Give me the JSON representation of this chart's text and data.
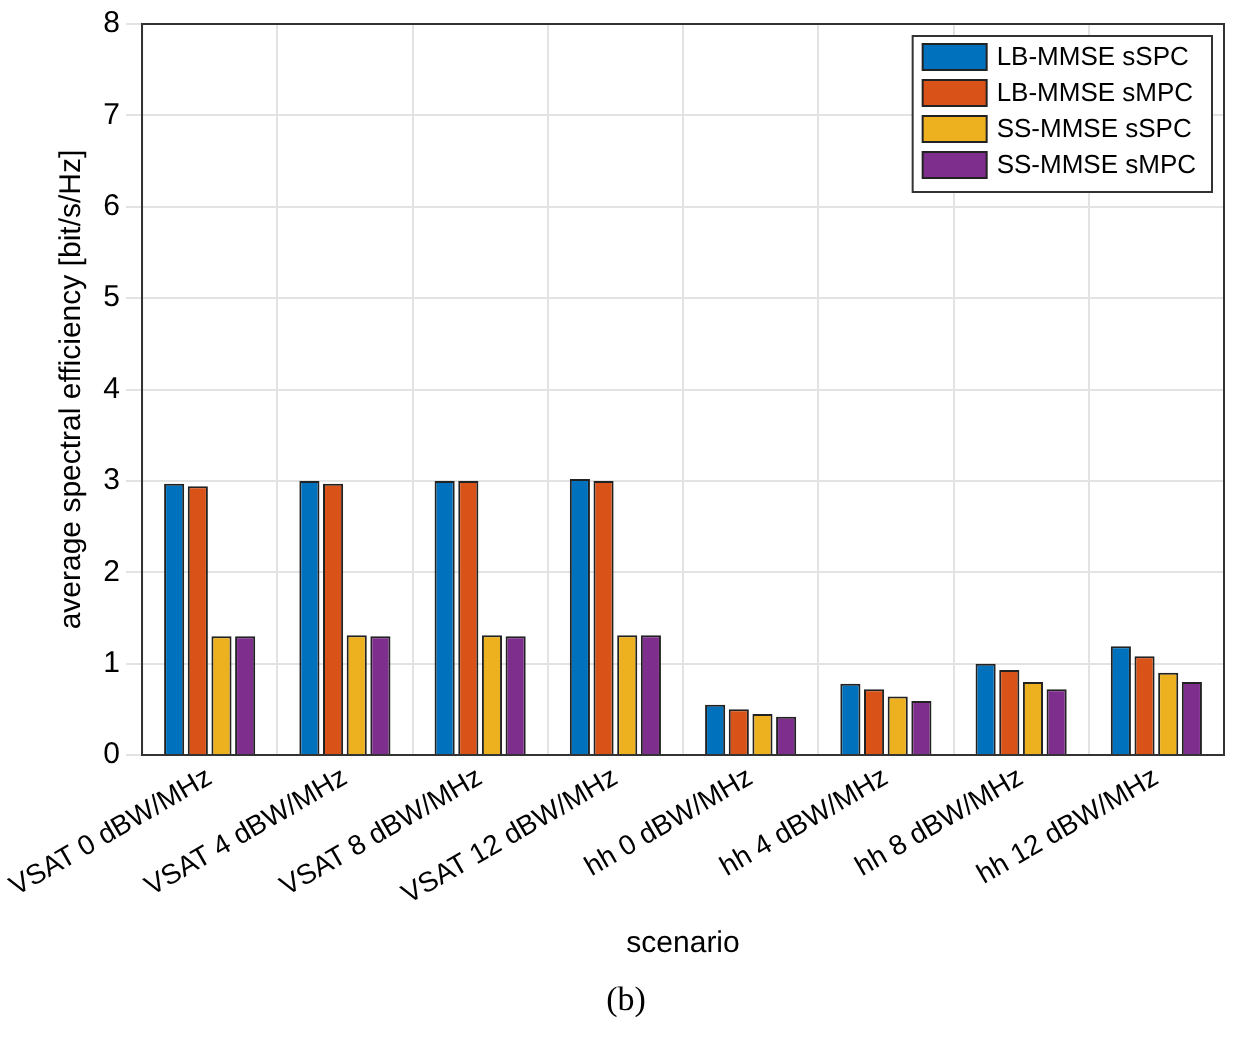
{
  "chart_data": {
    "type": "bar",
    "xlabel": "scenario",
    "ylabel": "average spectral efficiency [bit/s/Hz]",
    "categories": [
      "VSAT 0 dBW/MHz",
      "VSAT 4 dBW/MHz",
      "VSAT 8 dBW/MHz",
      "VSAT 12 dBW/MHz",
      "hh 0 dBW/MHz",
      "hh 4 dBW/MHz",
      "hh 8 dBW/MHz",
      "hh 12 dBW/MHz"
    ],
    "series": [
      {
        "name": "LB-MMSE sSPC",
        "color": "#0072bd",
        "values": [
          2.97,
          3.0,
          3.0,
          3.02,
          0.55,
          0.78,
          1.0,
          1.19
        ]
      },
      {
        "name": "LB-MMSE sMPC",
        "color": "#d95319",
        "values": [
          2.94,
          2.97,
          3.0,
          3.0,
          0.5,
          0.72,
          0.93,
          1.08
        ]
      },
      {
        "name": "SS-MMSE sSPC",
        "color": "#edb120",
        "values": [
          1.3,
          1.31,
          1.31,
          1.31,
          0.45,
          0.64,
          0.8,
          0.9
        ]
      },
      {
        "name": "SS-MMSE sMPC",
        "color": "#7e2f8e",
        "values": [
          1.3,
          1.3,
          1.3,
          1.31,
          0.42,
          0.59,
          0.72,
          0.8
        ]
      }
    ],
    "ylim": [
      0,
      8
    ],
    "yticks": [
      0,
      1,
      2,
      3,
      4,
      5,
      6,
      7,
      8
    ],
    "grid": true,
    "legend": "top right",
    "annotations": [
      "(b)"
    ]
  }
}
